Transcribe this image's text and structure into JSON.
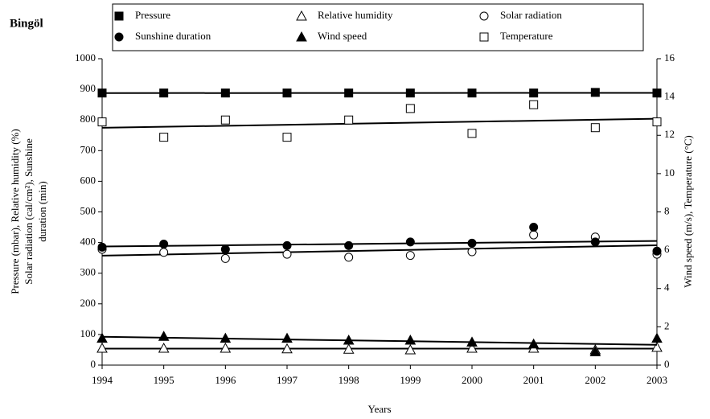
{
  "chart_data": {
    "type": "scatter",
    "title": "Bingöl",
    "xlabel": "Years",
    "ylabel": [
      "Pressure (mbar), Relative humidity (%)",
      "Solar radiation (cal/cm²), Sunshine",
      "duration (min)"
    ],
    "y2label": "Wind speed (m/s), Temperature (°C)",
    "x": [
      1994,
      1995,
      1996,
      1997,
      1998,
      1999,
      2000,
      2001,
      2002,
      2003
    ],
    "xlim": [
      1994,
      2003
    ],
    "xticks": [
      1994,
      1995,
      1996,
      1997,
      1998,
      1999,
      2000,
      2001,
      2002,
      2003
    ],
    "ylim": [
      0,
      1000
    ],
    "yticks": [
      0,
      100,
      200,
      300,
      400,
      500,
      600,
      700,
      800,
      900,
      1000
    ],
    "y2lim": [
      0,
      16
    ],
    "y2ticks": [
      0,
      2,
      4,
      6,
      8,
      10,
      12,
      14,
      16
    ],
    "trendline": true,
    "series": [
      {
        "name": "Pressure",
        "color": "#000000",
        "marker": "square",
        "filled": true,
        "values": [
          888,
          888,
          888,
          888,
          888,
          888,
          888,
          888,
          890,
          888
        ]
      },
      {
        "name": "Relative humidity",
        "color": "#000000",
        "marker": "triangle",
        "filled": false,
        "values": [
          55,
          55,
          55,
          53,
          52,
          50,
          55,
          55,
          50,
          58
        ]
      },
      {
        "name": "Solar radiation",
        "color": "#000000",
        "marker": "circle",
        "filled": false,
        "values": [
          378,
          368,
          348,
          362,
          352,
          358,
          370,
          425,
          418,
          362
        ]
      },
      {
        "name": "Sunshine duration",
        "color": "#000000",
        "marker": "circle",
        "filled": true,
        "values": [
          385,
          395,
          378,
          390,
          390,
          402,
          398,
          450,
          402,
          372
        ]
      },
      {
        "name": "Wind speed",
        "color": "#000000",
        "marker": "triangle",
        "filled": true,
        "axis": "y2",
        "values": [
          1.4,
          1.5,
          1.4,
          1.4,
          1.3,
          1.3,
          1.2,
          1.1,
          0.7,
          1.4
        ]
      },
      {
        "name": "Temperature",
        "color": "#000000",
        "marker": "square",
        "filled": false,
        "axis": "y2",
        "values": [
          12.7,
          11.9,
          12.8,
          11.9,
          12.8,
          13.4,
          12.1,
          13.6,
          12.4,
          12.7
        ]
      }
    ]
  }
}
